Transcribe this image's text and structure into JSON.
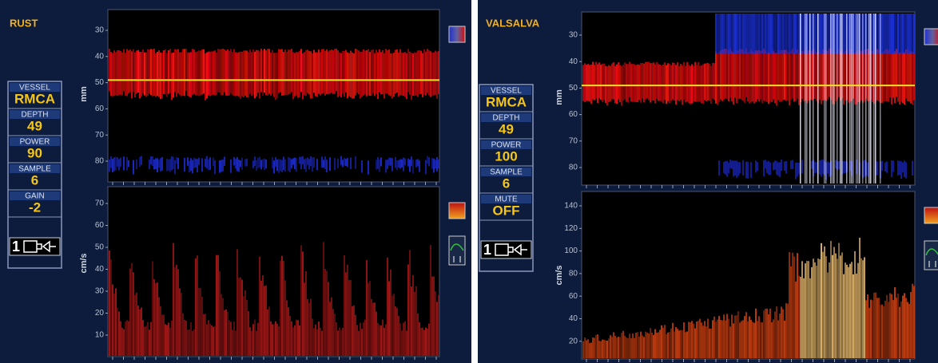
{
  "panels": [
    {
      "label": "RUST",
      "params": [
        {
          "name": "VESSEL",
          "value": "RMCA"
        },
        {
          "name": "DEPTH",
          "value": "49"
        },
        {
          "name": "POWER",
          "value": "90"
        },
        {
          "name": "SAMPLE",
          "value": "6"
        },
        {
          "name": "GAIN",
          "value": "-2"
        }
      ],
      "probe": "1",
      "depth_axis": {
        "label": "mm",
        "ticks": [
          30,
          40,
          50,
          60,
          70,
          80
        ]
      },
      "velocity_axis": {
        "label": "cm/s",
        "ticks": [
          70,
          60,
          50,
          40,
          30,
          20,
          10
        ]
      }
    },
    {
      "label": "VALSALVA",
      "params": [
        {
          "name": "VESSEL",
          "value": "RMCA"
        },
        {
          "name": "DEPTH",
          "value": "49"
        },
        {
          "name": "POWER",
          "value": "100"
        },
        {
          "name": "SAMPLE",
          "value": "6"
        },
        {
          "name": "MUTE",
          "value": "OFF"
        }
      ],
      "probe": "1",
      "depth_axis": {
        "label": "mm",
        "ticks": [
          30,
          40,
          50,
          60,
          70,
          80
        ]
      },
      "velocity_axis": {
        "label": "cm/s",
        "ticks": [
          140,
          120,
          100,
          80,
          60,
          40,
          20
        ]
      }
    }
  ]
}
